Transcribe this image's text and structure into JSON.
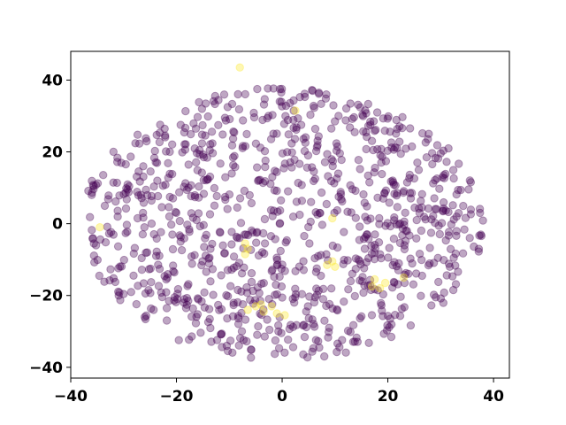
{
  "chart_data": {
    "type": "scatter",
    "title": "",
    "xlabel": "",
    "ylabel": "",
    "xlim": [
      -40,
      43
    ],
    "ylim": [
      -43,
      48
    ],
    "xticks": [
      -40,
      -20,
      0,
      20,
      40
    ],
    "yticks": [
      -40,
      -20,
      0,
      20,
      40
    ],
    "xtick_labels": [
      "−40",
      "−20",
      "0",
      "20",
      "40"
    ],
    "ytick_labels": [
      "−40",
      "−20",
      "0",
      "20",
      "40"
    ],
    "grid": false,
    "legend": "none",
    "point_alpha": 0.35,
    "series": [
      {
        "color": "#440154",
        "generator": {
          "kind": "elliptical-cloud",
          "count": 1000,
          "x_radius": 38,
          "y_radius": 38,
          "x_center": 0,
          "y_center": 0
        }
      },
      {
        "color": "#fde725",
        "points": [
          [
            -8,
            43.5
          ],
          [
            2.5,
            31.5
          ],
          [
            -34.5,
            -1
          ],
          [
            9.5,
            1.5
          ],
          [
            -7,
            -5.5
          ],
          [
            -6.5,
            -7
          ],
          [
            -7,
            -8.5
          ],
          [
            9.5,
            -10.5
          ],
          [
            8.5,
            -11.5
          ],
          [
            10,
            -12
          ],
          [
            17.5,
            -15.5
          ],
          [
            19.5,
            -16.5
          ],
          [
            18.5,
            -18
          ],
          [
            17,
            -17.5
          ],
          [
            23,
            -15
          ],
          [
            -6.5,
            -24
          ],
          [
            -5,
            -23
          ],
          [
            -3.5,
            -24.5
          ],
          [
            -2,
            -23
          ],
          [
            -1,
            -25
          ],
          [
            0.5,
            -25.5
          ],
          [
            -4,
            -22.5
          ]
        ]
      }
    ]
  }
}
